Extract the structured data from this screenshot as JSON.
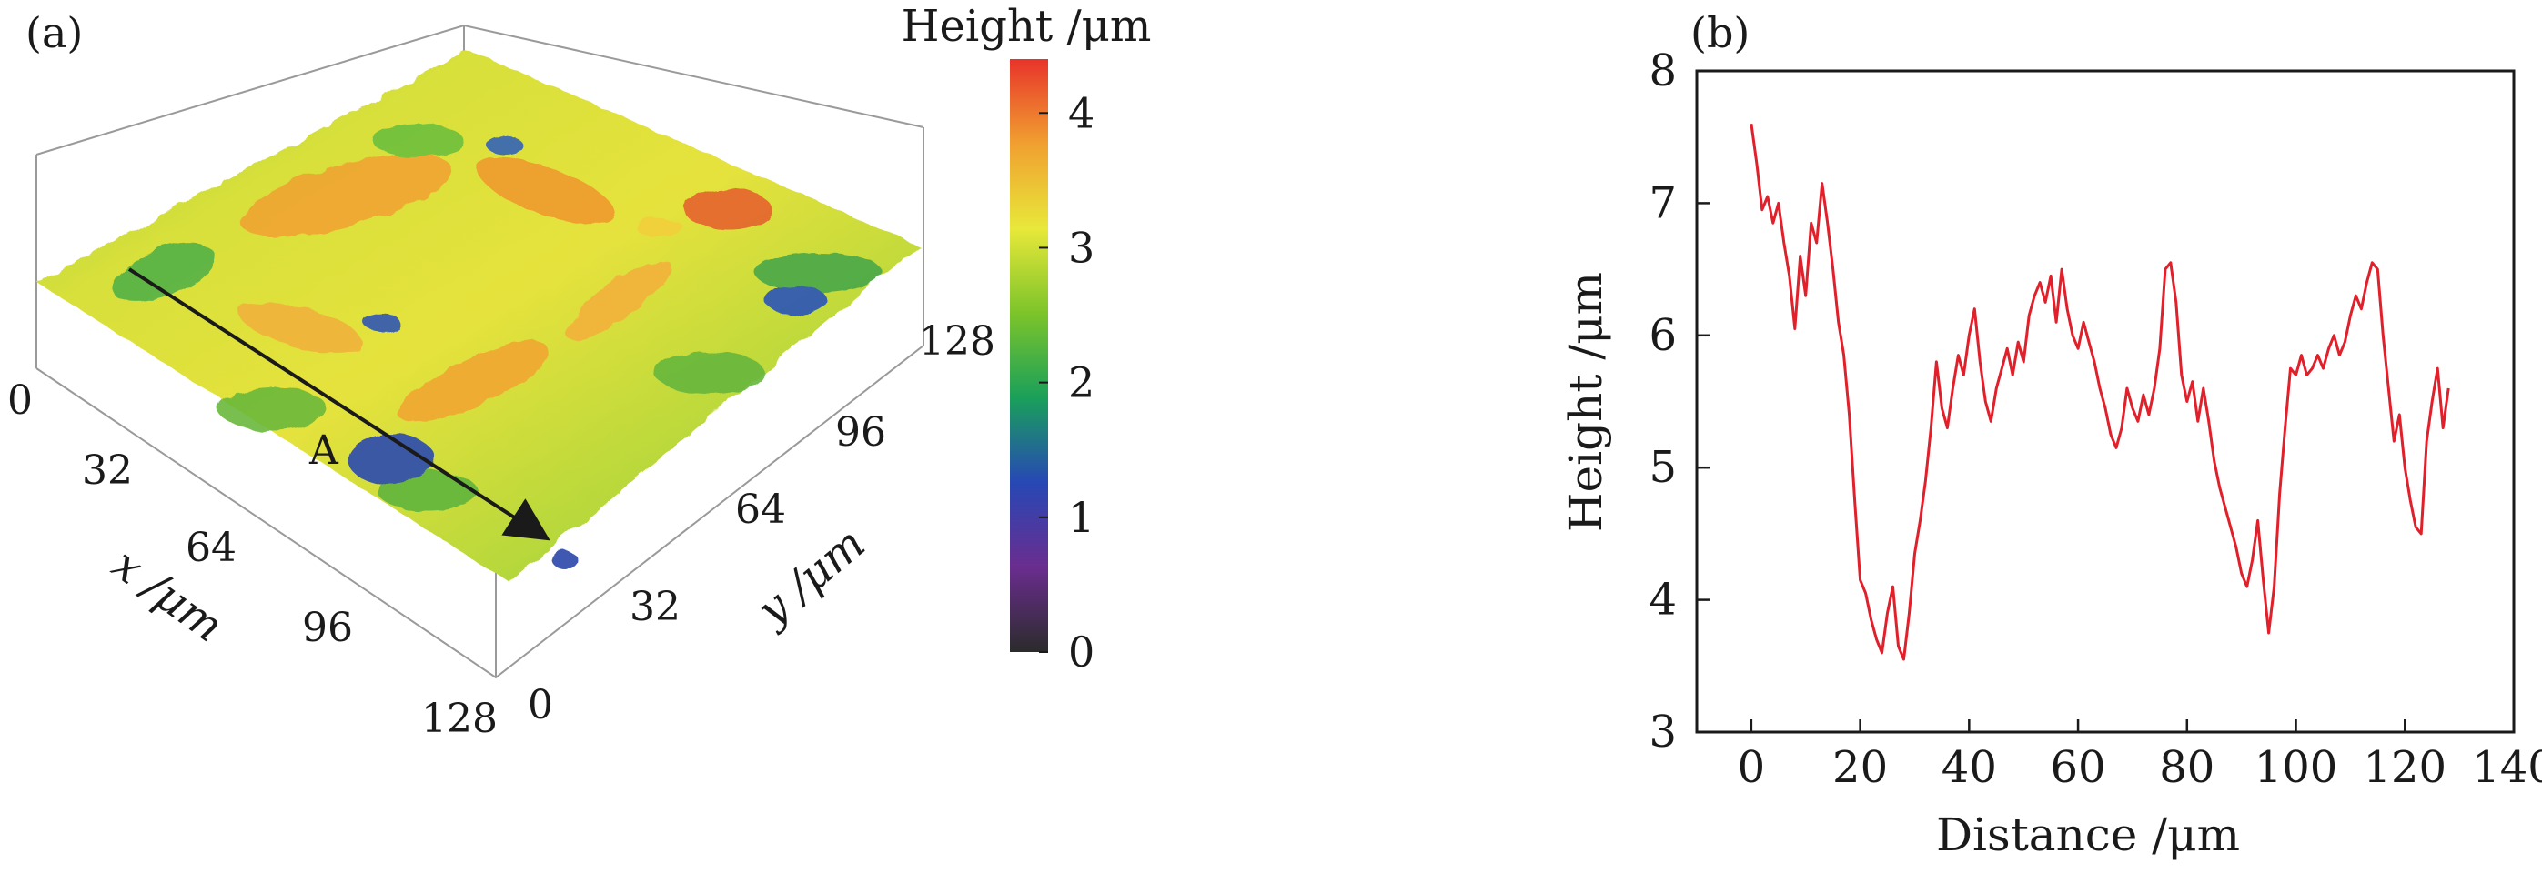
{
  "panel_a": {
    "label": "(a)",
    "marker_label": "A",
    "x_axis_label": "x /μm",
    "y_axis_label": "y /μm",
    "x_ticks": [
      "0",
      "32",
      "64",
      "96",
      "128"
    ],
    "y_ticks": [
      "0",
      "32",
      "64",
      "96",
      "128"
    ],
    "colorbar": {
      "title": "Height /μm",
      "ticks": [
        "0",
        "1",
        "2",
        "3",
        "4"
      ],
      "range": [
        0,
        4.4
      ],
      "stops": [
        "#2b2b2b",
        "#6a2d8f",
        "#2748b5",
        "#1aa05a",
        "#7cc42a",
        "#e8e83a",
        "#f0a030",
        "#e8342a"
      ]
    }
  },
  "chart_data": [
    {
      "type": "surface",
      "title": "",
      "xlabel": "x /μm",
      "ylabel": "y /μm",
      "zlabel": "Height /μm",
      "xlim": [
        0,
        128
      ],
      "ylim": [
        0,
        128
      ],
      "zlim": [
        0,
        4.4
      ]
    },
    {
      "type": "line",
      "label": "(b)",
      "title": "",
      "xlabel": "Distance /μm",
      "ylabel": "Height /μm",
      "xlim": [
        -10,
        140
      ],
      "ylim": [
        3,
        8
      ],
      "x_ticks": [
        "0",
        "20",
        "40",
        "60",
        "80",
        "100",
        "120",
        "140"
      ],
      "y_ticks": [
        "3",
        "4",
        "5",
        "6",
        "7",
        "8"
      ],
      "color": "#e0202a",
      "series": [
        {
          "x": [
            0,
            1,
            2,
            3,
            4,
            5,
            6,
            7,
            8,
            9,
            10,
            11,
            12,
            13,
            14,
            15,
            16,
            17,
            18,
            19,
            20,
            21,
            22,
            23,
            24,
            25,
            26,
            27,
            28,
            29,
            30,
            31,
            32,
            33,
            34,
            35,
            36,
            37,
            38,
            39,
            40,
            41,
            42,
            43,
            44,
            45,
            46,
            47,
            48,
            49,
            50,
            51,
            52,
            53,
            54,
            55,
            56,
            57,
            58,
            59,
            60,
            61,
            62,
            63,
            64,
            65,
            66,
            67,
            68,
            69,
            70,
            71,
            72,
            73,
            74,
            75,
            76,
            77,
            78,
            79,
            80,
            81,
            82,
            83,
            84,
            85,
            86,
            87,
            88,
            89,
            90,
            91,
            92,
            93,
            94,
            95,
            96,
            97,
            98,
            99,
            100,
            101,
            102,
            103,
            104,
            105,
            106,
            107,
            108,
            109,
            110,
            111,
            112,
            113,
            114,
            115,
            116,
            117,
            118,
            119,
            120,
            121,
            122,
            123,
            124,
            125,
            126,
            127,
            128
          ],
          "y": [
            7.6,
            7.3,
            6.95,
            7.05,
            6.85,
            7.0,
            6.7,
            6.45,
            6.05,
            6.6,
            6.3,
            6.85,
            6.7,
            7.15,
            6.85,
            6.5,
            6.1,
            5.85,
            5.4,
            4.75,
            4.15,
            4.05,
            3.85,
            3.7,
            3.6,
            3.9,
            4.1,
            3.65,
            3.55,
            3.9,
            4.35,
            4.6,
            4.9,
            5.3,
            5.8,
            5.45,
            5.3,
            5.6,
            5.85,
            5.7,
            6.0,
            6.2,
            5.8,
            5.5,
            5.35,
            5.6,
            5.75,
            5.9,
            5.7,
            5.95,
            5.8,
            6.15,
            6.3,
            6.4,
            6.25,
            6.45,
            6.1,
            6.5,
            6.2,
            6.0,
            5.9,
            6.1,
            5.95,
            5.8,
            5.6,
            5.45,
            5.25,
            5.15,
            5.3,
            5.6,
            5.45,
            5.35,
            5.55,
            5.4,
            5.6,
            5.9,
            6.5,
            6.55,
            6.25,
            5.7,
            5.5,
            5.65,
            5.35,
            5.6,
            5.35,
            5.05,
            4.85,
            4.7,
            4.55,
            4.4,
            4.2,
            4.1,
            4.3,
            4.6,
            4.15,
            3.75,
            4.1,
            4.8,
            5.3,
            5.75,
            5.7,
            5.85,
            5.7,
            5.75,
            5.85,
            5.75,
            5.9,
            6.0,
            5.85,
            5.95,
            6.15,
            6.3,
            6.2,
            6.4,
            6.55,
            6.5,
            6.0,
            5.6,
            5.2,
            5.4,
            5.0,
            4.75,
            4.55,
            4.5,
            5.2,
            5.5,
            5.75,
            5.3,
            5.6
          ]
        }
      ]
    }
  ]
}
